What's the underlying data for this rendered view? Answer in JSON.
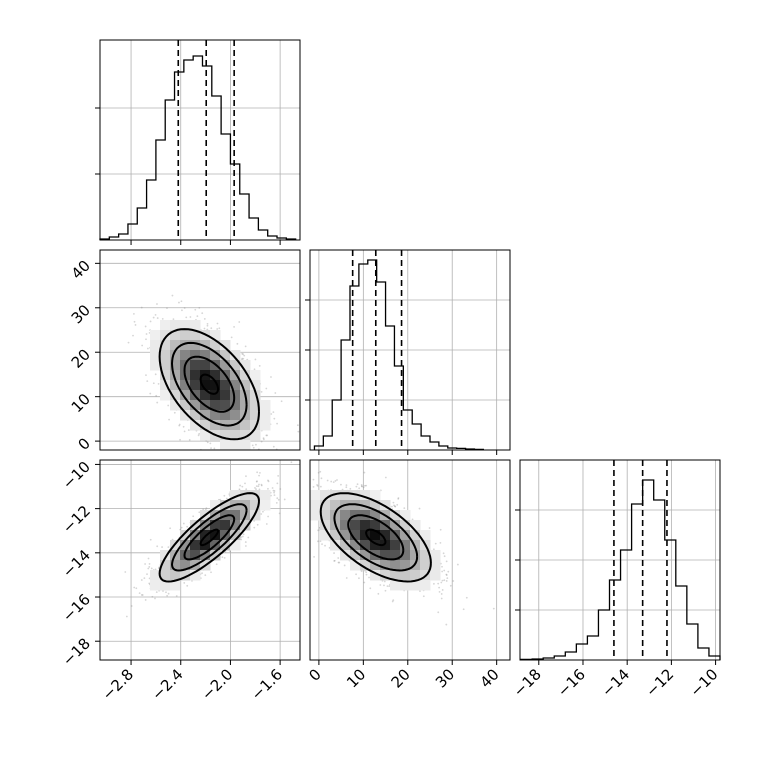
{
  "figure": {
    "background": "#ffffff",
    "grid": true,
    "grid_color": "#b0b0b0"
  },
  "chart_data": [
    {
      "panel": "hist-p1",
      "type": "bar",
      "histtype": "step",
      "variable_index": 0,
      "xlim": [
        -3.05,
        -1.44
      ],
      "ylim": [
        0,
        1.0
      ],
      "bin_edges": [
        -3.05,
        -2.975,
        -2.9,
        -2.825,
        -2.75,
        -2.675,
        -2.6,
        -2.525,
        -2.45,
        -2.375,
        -2.3,
        -2.225,
        -2.15,
        -2.075,
        -2.0,
        -1.925,
        -1.85,
        -1.775,
        -1.7,
        -1.625,
        -1.55,
        -1.475
      ],
      "counts": [
        0.005,
        0.015,
        0.03,
        0.08,
        0.16,
        0.3,
        0.5,
        0.7,
        0.84,
        0.9,
        0.92,
        0.87,
        0.72,
        0.53,
        0.38,
        0.23,
        0.11,
        0.05,
        0.02,
        0.01,
        0.005
      ],
      "quantiles": [
        -2.42,
        -2.195,
        -1.97
      ],
      "xticks": [
        -2.8,
        -2.4,
        -2.0,
        -1.6
      ],
      "yticks": [
        0.33,
        0.66
      ]
    },
    {
      "panel": "scatter-p1-p2",
      "type": "heatmap",
      "xlim": [
        -3.05,
        -1.44
      ],
      "ylim": [
        -2,
        43
      ],
      "center": [
        -2.17,
        12.8
      ],
      "sigma": [
        0.2,
        6.2
      ],
      "rho": -0.5,
      "yticks": [
        0,
        10,
        20,
        30,
        40
      ],
      "ytick_labels": [
        "0",
        "10",
        "20",
        "30",
        "40"
      ]
    },
    {
      "panel": "hist-p2",
      "type": "bar",
      "histtype": "step",
      "variable_index": 1,
      "xlim": [
        -2,
        43
      ],
      "ylim": [
        0,
        1.0
      ],
      "bin_edges": [
        -1,
        1,
        3,
        5,
        7,
        9,
        11,
        13,
        15,
        17,
        19,
        21,
        23,
        25,
        27,
        29,
        31,
        33,
        35,
        37
      ],
      "counts": [
        0.02,
        0.07,
        0.25,
        0.55,
        0.82,
        0.93,
        0.95,
        0.84,
        0.62,
        0.42,
        0.2,
        0.13,
        0.07,
        0.04,
        0.02,
        0.01,
        0.008,
        0.005,
        0.003
      ],
      "quantiles": [
        7.6,
        12.8,
        18.6
      ],
      "xticks": [
        0,
        10,
        20,
        30,
        40
      ],
      "yticks": [
        0.25,
        0.5,
        0.75
      ]
    },
    {
      "panel": "scatter-p1-p3",
      "type": "heatmap",
      "xlim": [
        -3.05,
        -1.44
      ],
      "ylim": [
        -18.85,
        -9.8
      ],
      "center": [
        -2.17,
        -13.3
      ],
      "sigma": [
        0.2,
        1.0
      ],
      "rho": 0.82,
      "xticks": [
        -2.8,
        -2.4,
        -2.0,
        -1.6
      ],
      "xtick_labels": [
        "−2.8",
        "−2.4",
        "−2.0",
        "−1.6"
      ],
      "yticks": [
        -10,
        -12,
        -14,
        -16,
        -18
      ],
      "ytick_labels": [
        "−10",
        "−12",
        "−14",
        "−16",
        "−18"
      ]
    },
    {
      "panel": "scatter-p2-p3",
      "type": "heatmap",
      "xlim": [
        -2,
        43
      ],
      "ylim": [
        -18.85,
        -9.8
      ],
      "center": [
        12.8,
        -13.3
      ],
      "sigma": [
        6.2,
        1.0
      ],
      "rho": -0.58,
      "xticks": [
        0,
        10,
        20,
        30,
        40
      ],
      "xtick_labels": [
        "0",
        "10",
        "20",
        "30",
        "40"
      ]
    },
    {
      "panel": "hist-p3",
      "type": "bar",
      "histtype": "step",
      "variable_index": 2,
      "xlim": [
        -18.85,
        -9.8
      ],
      "ylim": [
        0,
        1.0
      ],
      "bin_edges": [
        -18.8,
        -18.3,
        -17.8,
        -17.3,
        -16.8,
        -16.3,
        -15.8,
        -15.3,
        -14.8,
        -14.3,
        -13.8,
        -13.3,
        -12.8,
        -12.3,
        -11.8,
        -11.3,
        -10.8,
        -10.3,
        -9.8
      ],
      "counts": [
        0.003,
        0.005,
        0.01,
        0.02,
        0.04,
        0.08,
        0.12,
        0.25,
        0.4,
        0.55,
        0.78,
        0.9,
        0.8,
        0.6,
        0.37,
        0.18,
        0.06,
        0.02
      ],
      "quantiles": [
        -14.6,
        -13.3,
        -12.2
      ],
      "xticks": [
        -18,
        -16,
        -14,
        -12,
        -10
      ],
      "xtick_labels": [
        "−18",
        "−16",
        "−14",
        "−12",
        "−10"
      ],
      "yticks": [
        0.25,
        0.5,
        0.75
      ]
    }
  ]
}
